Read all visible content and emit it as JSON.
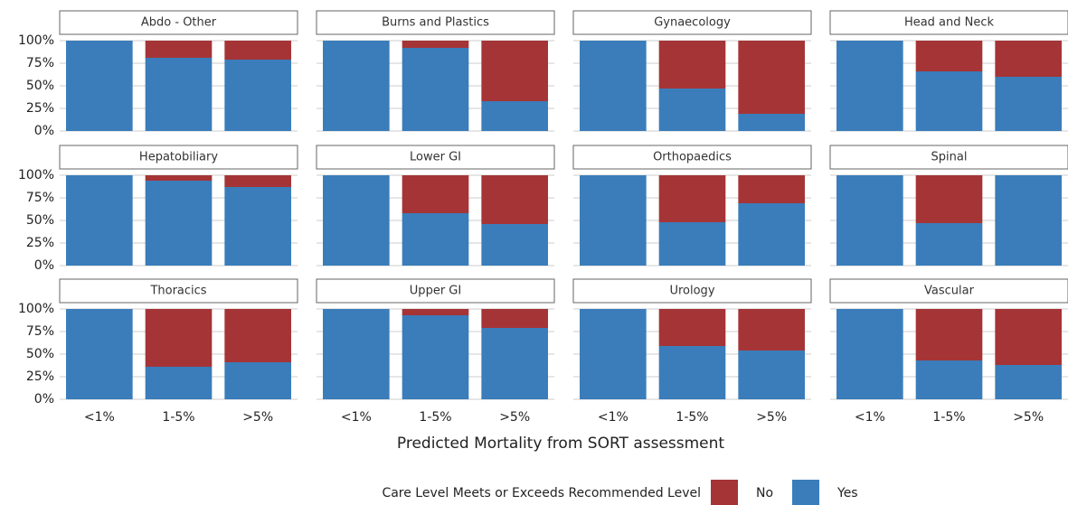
{
  "chart_data": {
    "type": "bar",
    "stacked": true,
    "xlabel": "Predicted Mortality from SORT assessment",
    "legend_title": "Care Level Meets or Exceeds Recommended Level",
    "categories": [
      "<1%",
      "1-5%",
      ">5%"
    ],
    "ylim": [
      0,
      100
    ],
    "yticks": [
      {
        "value": 0,
        "label": "0%"
      },
      {
        "value": 25,
        "label": "25%"
      },
      {
        "value": 50,
        "label": "50%"
      },
      {
        "value": 75,
        "label": "75%"
      },
      {
        "value": 100,
        "label": "100%"
      }
    ],
    "grid": true,
    "series": [
      {
        "name": "No",
        "color": "#a53437"
      },
      {
        "name": "Yes",
        "color": "#3a7dba"
      }
    ],
    "panels": [
      {
        "title": "Abdo - Other",
        "values": [
          [
            0,
            19,
            21
          ],
          [
            100,
            81,
            79
          ]
        ]
      },
      {
        "title": "Burns and Plastics",
        "values": [
          [
            0,
            8,
            67
          ],
          [
            100,
            92,
            33
          ]
        ]
      },
      {
        "title": "Gynaecology",
        "values": [
          [
            0,
            53,
            81
          ],
          [
            100,
            47,
            19
          ]
        ]
      },
      {
        "title": "Head and Neck",
        "values": [
          [
            0,
            34,
            40
          ],
          [
            100,
            66,
            60
          ]
        ]
      },
      {
        "title": "Hepatobiliary",
        "values": [
          [
            0,
            6,
            13
          ],
          [
            100,
            94,
            87
          ]
        ]
      },
      {
        "title": "Lower GI",
        "values": [
          [
            0,
            42,
            54
          ],
          [
            100,
            58,
            46
          ]
        ]
      },
      {
        "title": "Orthopaedics",
        "values": [
          [
            0,
            52,
            31
          ],
          [
            100,
            48,
            69
          ]
        ]
      },
      {
        "title": "Spinal",
        "values": [
          [
            0,
            53,
            0
          ],
          [
            100,
            47,
            100
          ]
        ]
      },
      {
        "title": "Thoracics",
        "values": [
          [
            0,
            64,
            59
          ],
          [
            100,
            36,
            41
          ]
        ]
      },
      {
        "title": "Upper GI",
        "values": [
          [
            0,
            7,
            21
          ],
          [
            100,
            93,
            79
          ]
        ]
      },
      {
        "title": "Urology",
        "values": [
          [
            0,
            41,
            46
          ],
          [
            100,
            59,
            54
          ]
        ]
      },
      {
        "title": "Vascular",
        "values": [
          [
            0,
            57,
            62
          ],
          [
            100,
            43,
            38
          ]
        ]
      }
    ]
  }
}
